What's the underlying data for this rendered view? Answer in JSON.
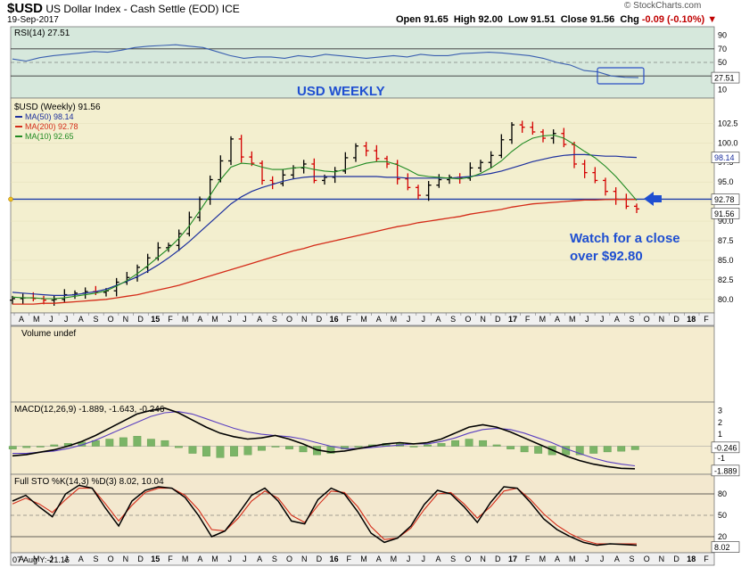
{
  "header": {
    "symbol": "$USD",
    "name": "US Dollar Index - Cash Settle (EOD)",
    "exchange": "ICE",
    "date": "19-Sep-2017",
    "open_label": "Open",
    "open": "91.65",
    "high_label": "High",
    "high": "92.00",
    "low_label": "Low",
    "low": "91.51",
    "close_label": "Close",
    "close": "91.56",
    "chg_label": "Chg",
    "chg": "-0.09 (-0.10%)",
    "logo": "© StockCharts.com"
  },
  "x_axis_labels": [
    "A",
    "M",
    "J",
    "J",
    "A",
    "S",
    "O",
    "N",
    "D",
    "15",
    "F",
    "M",
    "A",
    "M",
    "J",
    "J",
    "A",
    "S",
    "O",
    "N",
    "D",
    "16",
    "F",
    "M",
    "A",
    "M",
    "J",
    "J",
    "A",
    "S",
    "O",
    "N",
    "D",
    "17",
    "F",
    "M",
    "A",
    "M",
    "J",
    "J",
    "A",
    "S",
    "O",
    "N",
    "D",
    "18",
    "F"
  ],
  "bottom_label": "07 Aug Y:-21.16",
  "colors": {
    "bg_price": "#f3efcf",
    "bg_rsi": "#d6e8dc",
    "bg_macd": "#f5eccf",
    "bg_sto": "#f3e8cf",
    "ma50": "#1c2f9e",
    "ma200": "#d42b18",
    "ma10": "#1f8a22",
    "annotation": "#1f4fd1",
    "up_bar": "#000000",
    "down_bar": "#d40000"
  },
  "chart_data": [
    {
      "type": "line",
      "panel": "rsi",
      "legend": "RSI(14) 27.51",
      "ylim": [
        0,
        100
      ],
      "y_ticks": [
        "90",
        "70",
        "50",
        "30",
        "10"
      ],
      "overbought": 70,
      "oversold": 30,
      "last_label": "27.51",
      "series": [
        {
          "values": [
            55,
            52,
            57,
            60,
            62,
            64,
            66,
            65,
            68,
            72,
            74,
            75,
            76,
            74,
            72,
            66,
            60,
            56,
            58,
            58,
            56,
            60,
            58,
            62,
            60,
            58,
            56,
            58,
            60,
            58,
            62,
            60,
            60,
            63,
            64,
            65,
            64,
            62,
            60,
            56,
            50,
            46,
            38,
            36,
            30,
            28,
            27.5
          ]
        }
      ]
    },
    {
      "type": "ohlc",
      "panel": "price",
      "title": "USD WEEKLY",
      "legend": [
        "$USD (Weekly) 91.56",
        "MA(50) 98.14",
        "MA(200) 92.78",
        "MA(10) 92.65"
      ],
      "ylim": [
        78.5,
        105.5
      ],
      "y_ticks": [
        "102.5",
        "100.0",
        "97.5",
        "95.0",
        "92.5",
        "90.0",
        "87.5",
        "85.0",
        "82.5",
        "80.0"
      ],
      "last_labels": {
        "ma50": "98.14",
        "ma200": "92.78",
        "close": "91.56"
      },
      "horizontal_line": 92.8,
      "annotation": [
        "Watch for a close",
        "over $92.80"
      ],
      "close": [
        80.1,
        80.2,
        80.1,
        79.9,
        80.0,
        80.6,
        80.8,
        81.0,
        80.9,
        81.1,
        82.2,
        82.8,
        84.1,
        85.3,
        86.6,
        86.9,
        88.4,
        90.5,
        92.8,
        95.3,
        97.7,
        100.5,
        98.2,
        97.4,
        95.2,
        94.8,
        95.9,
        96.8,
        97.3,
        95.2,
        95.6,
        96.4,
        98.1,
        99.6,
        99.0,
        98.0,
        97.3,
        95.4,
        94.3,
        93.3,
        94.6,
        95.3,
        95.6,
        95.5,
        96.8,
        97.5,
        98.4,
        100.4,
        102.3,
        102.0,
        101.4,
        100.6,
        101.2,
        99.8,
        97.3,
        96.2,
        95.2,
        93.8,
        92.8,
        91.9,
        91.56
      ],
      "ma10": [
        80.3,
        80.2,
        80.2,
        80.1,
        80.1,
        80.2,
        80.4,
        80.6,
        80.8,
        81.1,
        81.7,
        82.4,
        83.3,
        84.3,
        85.4,
        86.5,
        87.8,
        89.4,
        91.3,
        93.3,
        95.3,
        96.9,
        97.4,
        97.3,
        96.9,
        96.6,
        96.6,
        96.8,
        96.9,
        96.6,
        96.4,
        96.3,
        96.6,
        97.0,
        97.4,
        97.6,
        97.6,
        97.2,
        96.6,
        95.9,
        95.7,
        95.6,
        95.5,
        95.4,
        95.6,
        96.1,
        96.8,
        97.7,
        98.9,
        99.9,
        100.6,
        100.9,
        101.0,
        100.6,
        99.8,
        98.9,
        98.1,
        97.0,
        95.7,
        94.2,
        92.65
      ],
      "ma50": [
        80.9,
        80.8,
        80.7,
        80.6,
        80.5,
        80.5,
        80.6,
        80.8,
        81.0,
        81.3,
        81.8,
        82.3,
        82.9,
        83.6,
        84.4,
        85.3,
        86.3,
        87.4,
        88.6,
        89.8,
        91.0,
        92.2,
        93.1,
        93.8,
        94.3,
        94.7,
        95.1,
        95.4,
        95.6,
        95.7,
        95.7,
        95.7,
        95.7,
        95.7,
        95.7,
        95.7,
        95.6,
        95.6,
        95.5,
        95.5,
        95.5,
        95.5,
        95.5,
        95.6,
        95.7,
        95.9,
        96.1,
        96.4,
        96.8,
        97.2,
        97.6,
        97.9,
        98.2,
        98.4,
        98.5,
        98.5,
        98.4,
        98.3,
        98.3,
        98.2,
        98.14
      ],
      "ma200": [
        79.4,
        79.4,
        79.4,
        79.5,
        79.5,
        79.6,
        79.7,
        79.8,
        79.9,
        80.0,
        80.2,
        80.4,
        80.6,
        80.9,
        81.2,
        81.5,
        81.8,
        82.2,
        82.6,
        83.0,
        83.4,
        83.8,
        84.2,
        84.6,
        85.0,
        85.4,
        85.8,
        86.2,
        86.5,
        86.9,
        87.2,
        87.5,
        87.8,
        88.1,
        88.4,
        88.7,
        89.0,
        89.3,
        89.5,
        89.8,
        90.0,
        90.2,
        90.4,
        90.6,
        90.9,
        91.1,
        91.3,
        91.5,
        91.8,
        92.0,
        92.2,
        92.3,
        92.4,
        92.5,
        92.6,
        92.7,
        92.7,
        92.75,
        92.78,
        92.78,
        92.78
      ]
    },
    {
      "type": "bar",
      "panel": "volume",
      "legend": "Volume undef"
    },
    {
      "type": "line",
      "panel": "macd",
      "legend": "MACD(12,26,9) -1.889, -1.643, -0.246",
      "ylim": [
        -2.2,
        3.4
      ],
      "y_ticks": [
        "3",
        "2",
        "1",
        "0",
        "-1"
      ],
      "last_labels": {
        "hist": "-0.246",
        "macd": "-1.889"
      },
      "series": [
        {
          "name": "MACD",
          "values": [
            -0.8,
            -0.7,
            -0.5,
            -0.3,
            0.0,
            0.4,
            0.9,
            1.5,
            2.1,
            2.7,
            3.0,
            3.2,
            2.8,
            2.2,
            1.6,
            1.1,
            0.8,
            0.6,
            0.7,
            0.9,
            0.6,
            0.2,
            -0.3,
            -0.5,
            -0.4,
            -0.2,
            0.0,
            0.2,
            0.3,
            0.2,
            0.3,
            0.6,
            1.1,
            1.6,
            1.8,
            1.6,
            1.2,
            0.7,
            0.2,
            -0.3,
            -0.8,
            -1.2,
            -1.5,
            -1.7,
            -1.85,
            -1.889
          ]
        },
        {
          "name": "Signal",
          "values": [
            -0.6,
            -0.6,
            -0.5,
            -0.4,
            -0.2,
            0.1,
            0.5,
            1.0,
            1.5,
            2.0,
            2.5,
            2.8,
            2.9,
            2.7,
            2.3,
            1.9,
            1.5,
            1.2,
            1.0,
            0.9,
            0.8,
            0.6,
            0.3,
            0.0,
            -0.2,
            -0.2,
            -0.1,
            0.0,
            0.1,
            0.2,
            0.2,
            0.4,
            0.7,
            1.1,
            1.4,
            1.5,
            1.4,
            1.1,
            0.7,
            0.3,
            -0.2,
            -0.6,
            -1.0,
            -1.3,
            -1.5,
            -1.643
          ]
        }
      ]
    },
    {
      "type": "line",
      "panel": "stochastic",
      "legend": "Full STO %K(14,3) %D(3) 8.02, 10.04",
      "ylim": [
        0,
        100
      ],
      "y_ticks": [
        "80",
        "50",
        "20"
      ],
      "last_label": "8.02",
      "series": [
        {
          "name": "%K",
          "values": [
            70,
            78,
            62,
            48,
            80,
            92,
            88,
            60,
            35,
            70,
            85,
            90,
            88,
            75,
            50,
            20,
            28,
            52,
            78,
            88,
            70,
            42,
            38,
            72,
            88,
            80,
            55,
            25,
            12,
            18,
            35,
            65,
            85,
            80,
            62,
            40,
            68,
            90,
            88,
            68,
            45,
            30,
            20,
            12,
            8,
            10,
            9,
            8.02
          ]
        },
        {
          "name": "%D",
          "values": [
            66,
            74,
            66,
            54,
            72,
            88,
            88,
            66,
            42,
            64,
            82,
            88,
            88,
            78,
            58,
            30,
            28,
            46,
            70,
            84,
            74,
            50,
            40,
            64,
            84,
            82,
            62,
            34,
            16,
            18,
            32,
            58,
            80,
            82,
            66,
            46,
            62,
            84,
            88,
            72,
            52,
            36,
            24,
            15,
            10,
            10,
            10,
            10.04
          ]
        }
      ]
    }
  ]
}
